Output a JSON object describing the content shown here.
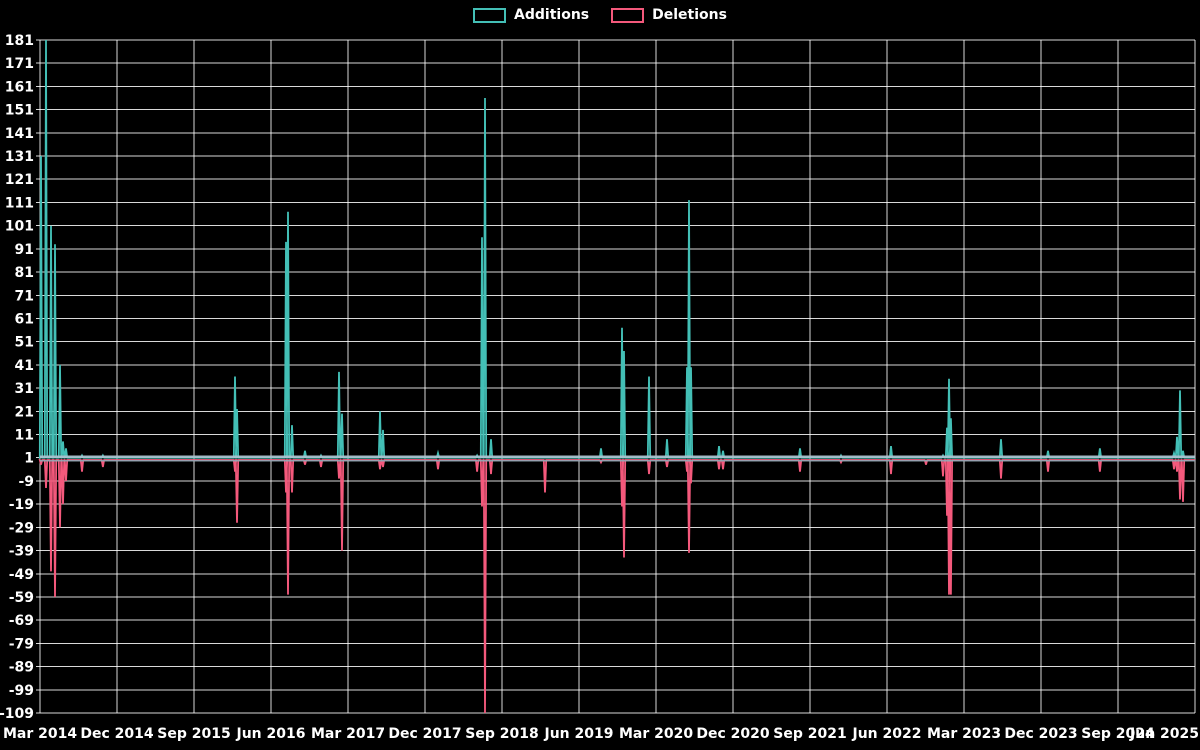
{
  "legend": {
    "additions_label": "Additions",
    "deletions_label": "Deletions"
  },
  "chart_data": {
    "type": "line",
    "title": "",
    "xlabel": "",
    "ylabel": "",
    "background_color": "#000000",
    "grid": true,
    "grid_color": "#ffffff",
    "text_color": "#ffffff",
    "legend_position": "top-center",
    "ylim": [
      -109,
      181
    ],
    "y_ticks": [
      181,
      171,
      161,
      151,
      141,
      131,
      121,
      111,
      101,
      91,
      81,
      71,
      61,
      51,
      41,
      31,
      21,
      11,
      1,
      -9,
      -19,
      -29,
      -39,
      -49,
      -59,
      -69,
      -79,
      -89,
      -99,
      -109
    ],
    "x_tick_labels": [
      "Mar 2014",
      "Dec 2014",
      "Sep 2015",
      "Jun 2016",
      "Mar 2017",
      "Dec 2017",
      "Sep 2018",
      "Jun 2019",
      "Mar 2020",
      "Dec 2020",
      "Sep 2021",
      "Jun 2022",
      "Mar 2023",
      "Dec 2023",
      "Sep 2024",
      "Jun 2025"
    ],
    "x_axis_note": "x given as fraction of axis span Mar 2014 (0) to Jun 2025 (1), weekly spikes",
    "series": [
      {
        "name": "Additions",
        "color": "#43bfb6",
        "baseline": 1
      },
      {
        "name": "Deletions",
        "color": "#f4597c",
        "baseline": 0
      }
    ],
    "points": [
      {
        "x": 0.0009,
        "additions": 131,
        "deletions": -2
      },
      {
        "x": 0.0052,
        "additions": 181,
        "deletions": -12
      },
      {
        "x": 0.0095,
        "additions": 101,
        "deletions": -48
      },
      {
        "x": 0.013,
        "additions": 93,
        "deletions": -59
      },
      {
        "x": 0.0173,
        "additions": 41,
        "deletions": -29
      },
      {
        "x": 0.0199,
        "additions": 8,
        "deletions": -19
      },
      {
        "x": 0.0225,
        "additions": 5,
        "deletions": -9
      },
      {
        "x": 0.0364,
        "additions": 2,
        "deletions": -5
      },
      {
        "x": 0.0545,
        "additions": 2,
        "deletions": -3
      },
      {
        "x": 0.1688,
        "additions": 36,
        "deletions": -5
      },
      {
        "x": 0.1706,
        "additions": 22,
        "deletions": -27
      },
      {
        "x": 0.213,
        "additions": 94,
        "deletions": -14
      },
      {
        "x": 0.2147,
        "additions": 107,
        "deletions": -58
      },
      {
        "x": 0.2182,
        "additions": 15,
        "deletions": -14
      },
      {
        "x": 0.2294,
        "additions": 4,
        "deletions": -2
      },
      {
        "x": 0.2433,
        "additions": 2,
        "deletions": -3
      },
      {
        "x": 0.2589,
        "additions": 38,
        "deletions": -8
      },
      {
        "x": 0.2615,
        "additions": 20,
        "deletions": -39
      },
      {
        "x": 0.2944,
        "additions": 21,
        "deletions": -4
      },
      {
        "x": 0.297,
        "additions": 13,
        "deletions": -3
      },
      {
        "x": 0.3446,
        "additions": 3,
        "deletions": -4
      },
      {
        "x": 0.3784,
        "additions": 2,
        "deletions": -5
      },
      {
        "x": 0.3827,
        "additions": 96,
        "deletions": -20
      },
      {
        "x": 0.3853,
        "additions": 156,
        "deletions": -109
      },
      {
        "x": 0.3905,
        "additions": 9,
        "deletions": -6
      },
      {
        "x": 0.4372,
        "additions": 1,
        "deletions": -14
      },
      {
        "x": 0.4857,
        "additions": 5,
        "deletions": -1
      },
      {
        "x": 0.5039,
        "additions": 57,
        "deletions": -20
      },
      {
        "x": 0.5056,
        "additions": 47,
        "deletions": -42
      },
      {
        "x": 0.5273,
        "additions": 36,
        "deletions": -6
      },
      {
        "x": 0.5429,
        "additions": 9,
        "deletions": -3
      },
      {
        "x": 0.5602,
        "additions": 40,
        "deletions": -5
      },
      {
        "x": 0.5619,
        "additions": 112,
        "deletions": -40
      },
      {
        "x": 0.5636,
        "additions": 40,
        "deletions": -10
      },
      {
        "x": 0.5879,
        "additions": 6,
        "deletions": -4
      },
      {
        "x": 0.5913,
        "additions": 4,
        "deletions": -4
      },
      {
        "x": 0.658,
        "additions": 5,
        "deletions": -5
      },
      {
        "x": 0.6935,
        "additions": 2,
        "deletions": -1
      },
      {
        "x": 0.7368,
        "additions": 6,
        "deletions": -6
      },
      {
        "x": 0.7671,
        "additions": 1,
        "deletions": -2
      },
      {
        "x": 0.7818,
        "additions": 2,
        "deletions": -7
      },
      {
        "x": 0.7853,
        "additions": 14,
        "deletions": -24
      },
      {
        "x": 0.787,
        "additions": 35,
        "deletions": -58
      },
      {
        "x": 0.7887,
        "additions": 18,
        "deletions": -58
      },
      {
        "x": 0.832,
        "additions": 9,
        "deletions": -8
      },
      {
        "x": 0.8727,
        "additions": 4,
        "deletions": -5
      },
      {
        "x": 0.9177,
        "additions": 5,
        "deletions": -5
      },
      {
        "x": 0.9818,
        "additions": 3,
        "deletions": -4
      },
      {
        "x": 0.9844,
        "additions": 10,
        "deletions": -5
      },
      {
        "x": 0.987,
        "additions": 30,
        "deletions": -17
      },
      {
        "x": 0.9896,
        "additions": 4,
        "deletions": -18
      }
    ]
  }
}
